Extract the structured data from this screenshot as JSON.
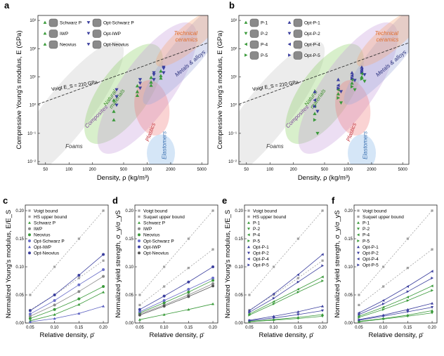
{
  "chart_data": [
    {
      "id": "a",
      "type": "scatter",
      "panel": "a",
      "xlabel": "Density, ρ (kg/m³)",
      "ylabel": "Compressive Young's modulus, E (GPa)",
      "xscale": "log",
      "yscale": "log",
      "xlim": [
        40,
        6000
      ],
      "ylim": [
        0.008,
        1500
      ],
      "xticks": [
        "50",
        "100",
        "200",
        "500",
        "1000",
        "2000",
        "5000"
      ],
      "yticks": [
        "10⁻²",
        "10⁻¹",
        "10⁰",
        "10¹",
        "10²",
        "10³"
      ],
      "voigt_label": "Voigt E_S = 210 GPa",
      "regions": [
        {
          "name": "Foams",
          "color": "#c8c8c8"
        },
        {
          "name": "Natural materials",
          "color": "#8fd16a"
        },
        {
          "name": "Composites",
          "color": "#c9a0dc"
        },
        {
          "name": "Plastics",
          "color": "#f08080"
        },
        {
          "name": "Elastomers",
          "color": "#87b7e8"
        },
        {
          "name": "Metals & alloys",
          "color": "#9fa8d9"
        },
        {
          "name": "Technical ceramics",
          "color": "#f5a878"
        }
      ],
      "legend": [
        "Schwarz P",
        "Opt-Schwarz P",
        "IWP",
        "Opt-IWP",
        "Neovius",
        "Opt-Neovius"
      ],
      "series": [
        {
          "name": "Schwarz P",
          "marker": "tri-up",
          "color": "#3a9a3a",
          "x": [
            390,
            780,
            1170,
            1560
          ],
          "y": [
            0.6,
            3.0,
            6.5,
            11
          ]
        },
        {
          "name": "IWP",
          "marker": "tri-up",
          "color": "#3a9a3a",
          "x": [
            390,
            780,
            1170,
            1560
          ],
          "y": [
            1.5,
            4.8,
            9.5,
            16
          ]
        },
        {
          "name": "Neovius",
          "marker": "tri-up",
          "color": "#3a9a3a",
          "x": [
            390,
            780,
            1170,
            1560
          ],
          "y": [
            0.3,
            2.2,
            5.0,
            9.0
          ]
        },
        {
          "name": "Opt-Schwarz P",
          "marker": "tri-down",
          "color": "#3b3f9e",
          "x": [
            390,
            780,
            1170,
            1560
          ],
          "y": [
            2.0,
            6.0,
            12,
            20
          ]
        },
        {
          "name": "Opt-IWP",
          "marker": "tri-down",
          "color": "#3b3f9e",
          "x": [
            390,
            780,
            1170,
            1560
          ],
          "y": [
            3.5,
            8.0,
            14,
            22
          ]
        },
        {
          "name": "Opt-Neovius",
          "marker": "tri-down",
          "color": "#3b3f9e",
          "x": [
            390,
            780,
            1170,
            1560
          ],
          "y": [
            1.0,
            4.0,
            8.0,
            14
          ]
        }
      ]
    },
    {
      "id": "b",
      "type": "scatter",
      "panel": "b",
      "xlabel": "Density, ρ (kg/m³)",
      "ylabel": "Compressive Young's modulus, E (GPa)",
      "xscale": "log",
      "yscale": "log",
      "xlim": [
        40,
        6000
      ],
      "ylim": [
        0.008,
        1500
      ],
      "xticks": [
        "50",
        "100",
        "200",
        "500",
        "1000",
        "2000",
        "5000"
      ],
      "yticks": [
        "10⁻²",
        "10⁻¹",
        "10⁰",
        "10¹",
        "10²",
        "10³"
      ],
      "voigt_label": "Voigt E_S = 210 GPa",
      "regions": [
        {
          "name": "Foams",
          "color": "#c8c8c8"
        },
        {
          "name": "Natural materials",
          "color": "#8fd16a"
        },
        {
          "name": "Composites",
          "color": "#c9a0dc"
        },
        {
          "name": "Plastics",
          "color": "#f08080"
        },
        {
          "name": "Elastomers",
          "color": "#87b7e8"
        },
        {
          "name": "Metals & alloys",
          "color": "#9fa8d9"
        },
        {
          "name": "Technical ceramics",
          "color": "#f5a878"
        }
      ],
      "legend": [
        "P-1",
        "Opt-P-1",
        "P-2",
        "Opt-P-2",
        "P-4",
        "Opt-P-4",
        "P-5",
        "Opt-P-5"
      ],
      "series": [
        {
          "name": "P-1",
          "marker": "tri-up",
          "color": "#3a9a3a",
          "x": [
            390,
            780,
            1170,
            1560
          ],
          "y": [
            0.5,
            2.5,
            6.0,
            10
          ]
        },
        {
          "name": "P-2",
          "marker": "tri-down",
          "color": "#3a9a3a",
          "x": [
            390,
            780,
            1170,
            1560
          ],
          "y": [
            0.1,
            1.2,
            3.5,
            7.0
          ]
        },
        {
          "name": "P-4",
          "marker": "tri-left",
          "color": "#3a9a3a",
          "x": [
            390,
            780,
            1170,
            1560
          ],
          "y": [
            0.9,
            3.5,
            8.0,
            13
          ]
        },
        {
          "name": "P-5",
          "marker": "tri-right",
          "color": "#3a9a3a",
          "x": [
            390,
            780,
            1170,
            1560
          ],
          "y": [
            0.3,
            1.8,
            4.5,
            8.5
          ]
        },
        {
          "name": "Opt-P-1",
          "marker": "tri-up",
          "color": "#3b3f9e",
          "x": [
            390,
            780,
            1170,
            1560
          ],
          "y": [
            3.0,
            8.0,
            14,
            22
          ]
        },
        {
          "name": "Opt-P-2",
          "marker": "tri-down",
          "color": "#3b3f9e",
          "x": [
            390,
            780,
            1170,
            1560
          ],
          "y": [
            0.6,
            3.0,
            7.5,
            12
          ]
        },
        {
          "name": "Opt-P-4",
          "marker": "tri-left",
          "color": "#3b3f9e",
          "x": [
            390,
            780,
            1170,
            1560
          ],
          "y": [
            1.5,
            5.0,
            11,
            18
          ]
        },
        {
          "name": "Opt-P-5",
          "marker": "tri-right",
          "color": "#3b3f9e",
          "x": [
            390,
            780,
            1170,
            1560
          ],
          "y": [
            0.9,
            4.0,
            9.0,
            15
          ]
        }
      ]
    },
    {
      "id": "c",
      "type": "line",
      "panel": "c",
      "xlabel": "Relative density, ρ̄",
      "ylabel": "Normalized Young's modulus, E/E_S",
      "xlim": [
        0.04,
        0.21
      ],
      "ylim": [
        0,
        0.21
      ],
      "xticks": [
        "0.05",
        "0.10",
        "0.15",
        "0.20"
      ],
      "yticks": [
        "0.00",
        "0.05",
        "0.10",
        "0.15",
        "0.20"
      ],
      "x": [
        0.05,
        0.1,
        0.15,
        0.2
      ],
      "series": [
        {
          "name": "Voigt bound",
          "marker": "square",
          "color": "#a0a0a0",
          "line": "dotted",
          "values": [
            0.05,
            0.1,
            0.15,
            0.2
          ]
        },
        {
          "name": "HS upper bound",
          "marker": "square",
          "color": "#a0a0a0",
          "line": "dotted",
          "values": [
            0.023,
            0.05,
            0.08,
            0.111
          ]
        },
        {
          "name": "Schwarz P",
          "marker": "tri-up",
          "color": "#3a9a3a",
          "line": "solid",
          "values": [
            0.004,
            0.015,
            0.033,
            0.055
          ]
        },
        {
          "name": "IWP",
          "marker": "circle",
          "color": "#8a8a8a",
          "line": "solid",
          "values": [
            0.012,
            0.032,
            0.056,
            0.083
          ]
        },
        {
          "name": "Neovius",
          "marker": "circle",
          "color": "#3a9a3a",
          "line": "solid",
          "values": [
            0.008,
            0.024,
            0.043,
            0.065
          ]
        },
        {
          "name": "Opt-Schwarz P",
          "marker": "circle",
          "color": "#6a6fc9",
          "line": "solid",
          "values": [
            0.016,
            0.04,
            0.068,
            0.095
          ]
        },
        {
          "name": "Opt-IWP",
          "marker": "tri-up",
          "color": "#5a5fc0",
          "line": "solid",
          "values": [
            0.002,
            0.008,
            0.017,
            0.03
          ]
        },
        {
          "name": "Opt-Neovius",
          "marker": "circle",
          "color": "#3b3f9e",
          "line": "solid",
          "values": [
            0.022,
            0.05,
            0.085,
            0.122
          ]
        }
      ]
    },
    {
      "id": "d",
      "type": "line",
      "panel": "d",
      "xlabel": "Relative density, ρ̄",
      "ylabel": "Normalized yield strength, σ_y/σ_yS",
      "xlim": [
        0.04,
        0.21
      ],
      "ylim": [
        0,
        0.21
      ],
      "xticks": [
        "0.05",
        "0.10",
        "0.15",
        "0.20"
      ],
      "yticks": [
        "0.00",
        "0.05",
        "0.10",
        "0.15",
        "0.20"
      ],
      "x": [
        0.05,
        0.1,
        0.15,
        0.2
      ],
      "series": [
        {
          "name": "Voigt bound",
          "marker": "square",
          "color": "#a0a0a0",
          "line": "dotted",
          "values": [
            0.05,
            0.1,
            0.15,
            0.2
          ]
        },
        {
          "name": "Suquet upper bound",
          "marker": "square",
          "color": "#a0a0a0",
          "line": "dotted",
          "values": [
            0.032,
            0.065,
            0.098,
            0.131
          ]
        },
        {
          "name": "Schwarz P",
          "marker": "tri-up",
          "color": "#3a9a3a",
          "line": "solid",
          "values": [
            0.006,
            0.015,
            0.024,
            0.034
          ]
        },
        {
          "name": "IWP",
          "marker": "circle",
          "color": "#8a8a8a",
          "line": "solid",
          "values": [
            0.016,
            0.032,
            0.05,
            0.07
          ]
        },
        {
          "name": "Neovius",
          "marker": "circle",
          "color": "#3a9a3a",
          "line": "solid",
          "values": [
            0.018,
            0.036,
            0.055,
            0.076
          ]
        },
        {
          "name": "Opt-Schwarz P",
          "marker": "circle",
          "color": "#6a6fc9",
          "line": "solid",
          "values": [
            0.02,
            0.04,
            0.06,
            0.08
          ]
        },
        {
          "name": "Opt-IWP",
          "marker": "circle",
          "color": "#3b3f9e",
          "line": "solid",
          "values": [
            0.024,
            0.048,
            0.073,
            0.1
          ]
        },
        {
          "name": "Opt-Neovius",
          "marker": "circle",
          "color": "#555",
          "line": "solid",
          "values": [
            0.014,
            0.03,
            0.047,
            0.066
          ]
        }
      ]
    },
    {
      "id": "e",
      "type": "line",
      "panel": "e",
      "xlabel": "Relative density, ρ̄",
      "ylabel": "Normalized Young's modulus, E/E_S",
      "xlim": [
        0.04,
        0.21
      ],
      "ylim": [
        0,
        0.21
      ],
      "xticks": [
        "0.05",
        "0.10",
        "0.15",
        "0.20"
      ],
      "yticks": [
        "0.00",
        "0.05",
        "0.10",
        "0.15",
        "0.20"
      ],
      "x": [
        0.05,
        0.1,
        0.15,
        0.2
      ],
      "series": [
        {
          "name": "Voigt bound",
          "marker": "square",
          "color": "#a0a0a0",
          "line": "dotted",
          "values": [
            0.05,
            0.1,
            0.15,
            0.2
          ]
        },
        {
          "name": "HS upper bound",
          "marker": "square",
          "color": "#a0a0a0",
          "line": "dotted",
          "values": [
            0.023,
            0.05,
            0.08,
            0.111
          ]
        },
        {
          "name": "P-1",
          "marker": "tri-up",
          "color": "#3a9a3a",
          "line": "solid",
          "values": [
            0.003,
            0.006,
            0.01,
            0.015
          ]
        },
        {
          "name": "P-2",
          "marker": "tri-down",
          "color": "#3a9a3a",
          "line": "solid",
          "values": [
            0.002,
            0.005,
            0.008,
            0.012
          ]
        },
        {
          "name": "P-4",
          "marker": "tri-left",
          "color": "#3a9a3a",
          "line": "solid",
          "values": [
            0.016,
            0.038,
            0.06,
            0.082
          ]
        },
        {
          "name": "P-5",
          "marker": "tri-right",
          "color": "#3a9a3a",
          "line": "solid",
          "values": [
            0.014,
            0.034,
            0.055,
            0.075
          ]
        },
        {
          "name": "Opt-P-1",
          "marker": "tri-up",
          "color": "#3b3f9e",
          "line": "solid",
          "values": [
            0.005,
            0.012,
            0.02,
            0.03
          ]
        },
        {
          "name": "Opt-P-2",
          "marker": "tri-down",
          "color": "#3b3f9e",
          "line": "solid",
          "values": [
            0.004,
            0.009,
            0.015,
            0.022
          ]
        },
        {
          "name": "Opt-P-4",
          "marker": "tri-left",
          "color": "#3b3f9e",
          "line": "solid",
          "values": [
            0.022,
            0.052,
            0.086,
            0.122
          ]
        },
        {
          "name": "Opt-P-5",
          "marker": "tri-right",
          "color": "#3b3f9e",
          "line": "solid",
          "values": [
            0.019,
            0.044,
            0.073,
            0.102
          ]
        }
      ]
    },
    {
      "id": "f",
      "type": "line",
      "panel": "f",
      "xlabel": "Relative density, ρ̄",
      "ylabel": "Normalized yield strength, σ_y/σ_yS",
      "xlim": [
        0.04,
        0.21
      ],
      "ylim": [
        0,
        0.21
      ],
      "xticks": [
        "0.05",
        "0.10",
        "0.15",
        "0.20"
      ],
      "yticks": [
        "0.00",
        "0.05",
        "0.10",
        "0.15",
        "0.20"
      ],
      "x": [
        0.05,
        0.1,
        0.15,
        0.2
      ],
      "series": [
        {
          "name": "Voigt bound",
          "marker": "square",
          "color": "#a0a0a0",
          "line": "dotted",
          "values": [
            0.05,
            0.1,
            0.15,
            0.2
          ]
        },
        {
          "name": "Suquet upper bound",
          "marker": "square",
          "color": "#a0a0a0",
          "line": "dotted",
          "values": [
            0.032,
            0.065,
            0.098,
            0.131
          ]
        },
        {
          "name": "P-1",
          "marker": "tri-up",
          "color": "#3a9a3a",
          "line": "solid",
          "values": [
            0.003,
            0.008,
            0.014,
            0.022
          ]
        },
        {
          "name": "P-2",
          "marker": "tri-down",
          "color": "#3a9a3a",
          "line": "solid",
          "values": [
            0.002,
            0.007,
            0.012,
            0.018
          ]
        },
        {
          "name": "P-4",
          "marker": "tri-left",
          "color": "#3a9a3a",
          "line": "solid",
          "values": [
            0.012,
            0.028,
            0.046,
            0.066
          ]
        },
        {
          "name": "P-5",
          "marker": "tri-right",
          "color": "#3a9a3a",
          "line": "solid",
          "values": [
            0.01,
            0.024,
            0.04,
            0.058
          ]
        },
        {
          "name": "Opt-P-1",
          "marker": "tri-up",
          "color": "#3b3f9e",
          "line": "solid",
          "values": [
            0.006,
            0.014,
            0.024,
            0.035
          ]
        },
        {
          "name": "Opt-P-2",
          "marker": "tri-down",
          "color": "#3b3f9e",
          "line": "solid",
          "values": [
            0.005,
            0.012,
            0.02,
            0.028
          ]
        },
        {
          "name": "Opt-P-4",
          "marker": "tri-left",
          "color": "#3b3f9e",
          "line": "solid",
          "values": [
            0.018,
            0.04,
            0.065,
            0.092
          ]
        },
        {
          "name": "Opt-P-5",
          "marker": "tri-right",
          "color": "#3b3f9e",
          "line": "solid",
          "values": [
            0.015,
            0.034,
            0.056,
            0.08
          ]
        }
      ]
    }
  ]
}
